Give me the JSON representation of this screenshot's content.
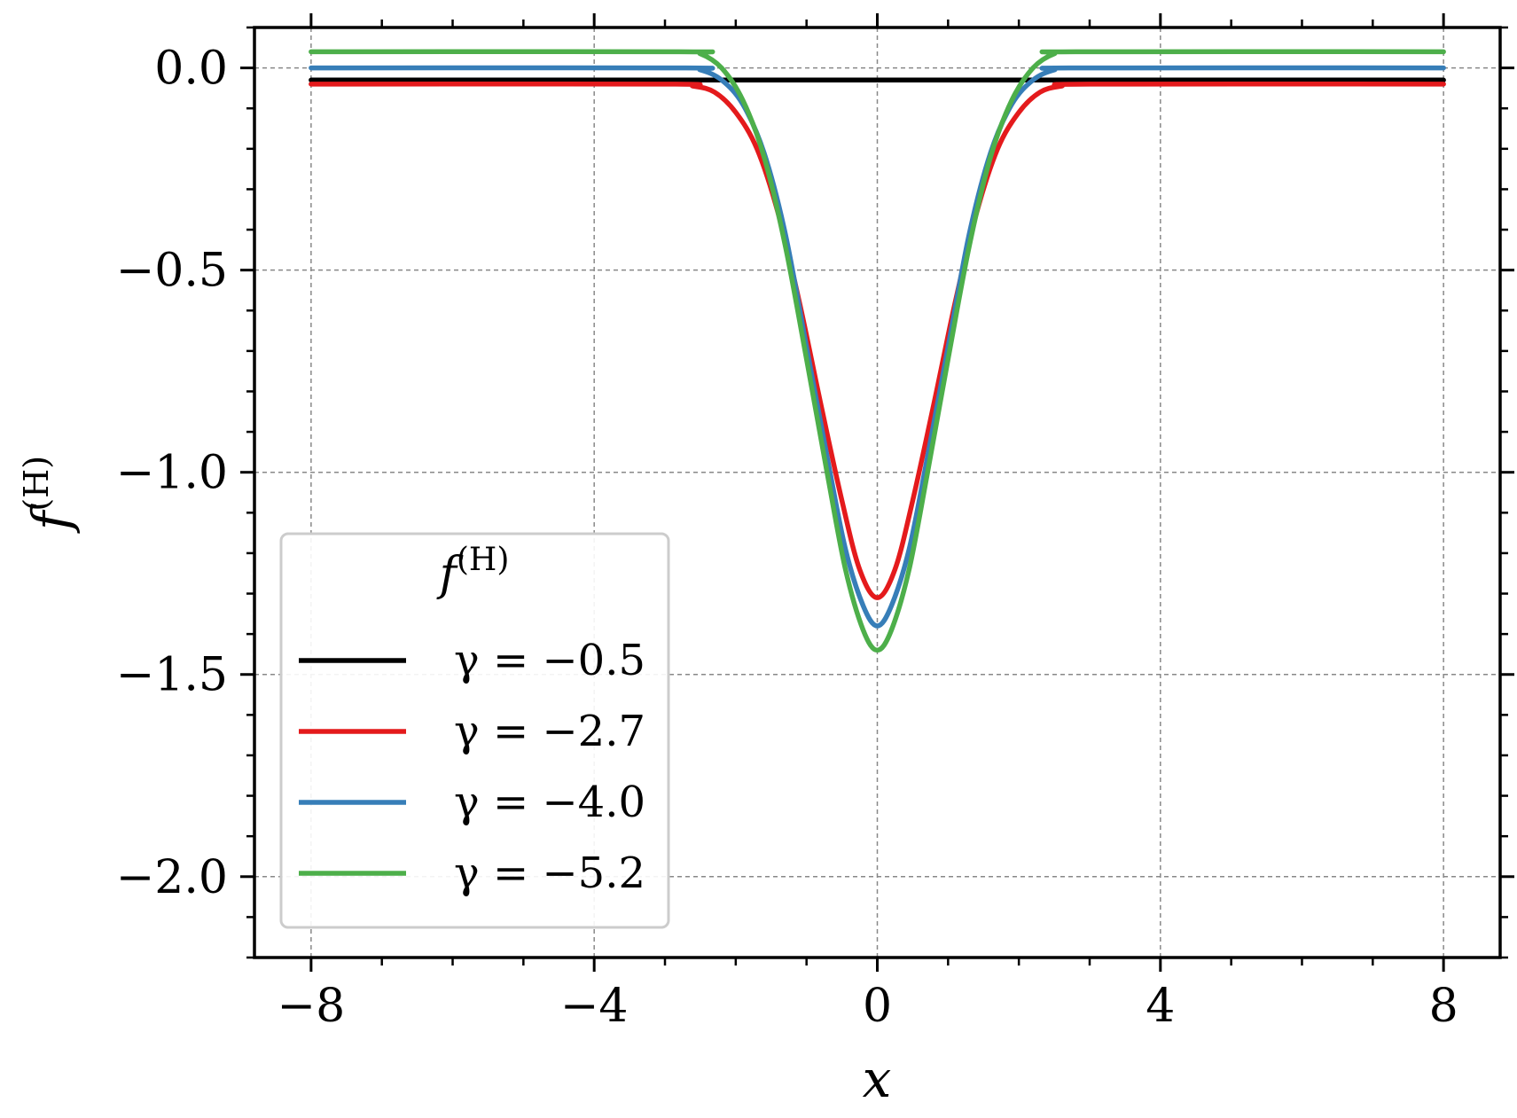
{
  "chart_data": {
    "type": "line",
    "xlabel": "x",
    "ylabel_base": "f",
    "ylabel_sup": "(H)",
    "xlim": [
      -8.8,
      8.8
    ],
    "ylim": [
      -2.2,
      0.1
    ],
    "xticks": [
      -8,
      -4,
      0,
      4,
      8
    ],
    "xtick_labels": [
      "−8",
      "−4",
      "0",
      "4",
      "8"
    ],
    "xminor_step": 1,
    "yticks": [
      0.0,
      -0.5,
      -1.0,
      -1.5,
      -2.0
    ],
    "ytick_labels": [
      "0.0",
      "−0.5",
      "−1.0",
      "−1.5",
      "−2.0"
    ],
    "yminor_step": 0.1,
    "grid": true,
    "legend": {
      "placement": "lower-left",
      "title_base": "f",
      "title_sup": "(H)"
    },
    "series": [
      {
        "name": "γ = −0.5",
        "color": "#000000",
        "x": [
          -8,
          -3,
          -2.5,
          -2,
          -1.5,
          -1,
          -0.5,
          0,
          0.5,
          1,
          1.5,
          2,
          2.5,
          3,
          8
        ],
        "values": [
          -0.03,
          -0.03,
          -0.03,
          -0.03,
          -0.03,
          -0.03,
          -0.03,
          -0.03,
          -0.03,
          -0.03,
          -0.03,
          -0.03,
          -0.03,
          -0.03,
          -0.03
        ]
      },
      {
        "name": "γ = −2.7",
        "color": "#e41a1c",
        "x": [
          -8,
          -3,
          -2.6,
          -2.3,
          -2,
          -1.7,
          -1.4,
          -1.1,
          -0.8,
          -0.5,
          -0.25,
          0,
          0.25,
          0.5,
          0.8,
          1.1,
          1.4,
          1.7,
          2,
          2.3,
          2.6,
          3,
          8
        ],
        "values": [
          -0.04,
          -0.04,
          -0.045,
          -0.06,
          -0.11,
          -0.2,
          -0.36,
          -0.58,
          -0.83,
          -1.07,
          -1.24,
          -1.31,
          -1.24,
          -1.07,
          -0.83,
          -0.58,
          -0.36,
          -0.2,
          -0.11,
          -0.06,
          -0.045,
          -0.04,
          -0.04
        ]
      },
      {
        "name": "γ = −4.0",
        "color": "#377eb8",
        "x": [
          -8,
          -2.8,
          -2.5,
          -2.2,
          -1.9,
          -1.6,
          -1.3,
          -1.0,
          -0.7,
          -0.45,
          -0.2,
          0,
          0.2,
          0.45,
          0.7,
          1.0,
          1.3,
          1.6,
          1.9,
          2.2,
          2.5,
          2.8,
          8
        ],
        "values": [
          0.0,
          0.0,
          -0.005,
          -0.03,
          -0.09,
          -0.21,
          -0.41,
          -0.69,
          -0.97,
          -1.19,
          -1.33,
          -1.38,
          -1.33,
          -1.19,
          -0.97,
          -0.69,
          -0.41,
          -0.21,
          -0.09,
          -0.03,
          -0.005,
          0.0,
          0.0
        ]
      },
      {
        "name": "γ = −5.2",
        "color": "#4daf4a",
        "x": [
          -8,
          -2.8,
          -2.5,
          -2.2,
          -1.9,
          -1.6,
          -1.3,
          -1.0,
          -0.7,
          -0.45,
          -0.2,
          0,
          0.2,
          0.45,
          0.7,
          1.0,
          1.3,
          1.6,
          1.9,
          2.2,
          2.5,
          2.8,
          8
        ],
        "values": [
          0.04,
          0.04,
          0.035,
          0.0,
          -0.08,
          -0.22,
          -0.44,
          -0.72,
          -1.01,
          -1.24,
          -1.39,
          -1.44,
          -1.39,
          -1.24,
          -1.01,
          -0.72,
          -0.44,
          -0.22,
          -0.08,
          0.0,
          0.035,
          0.04,
          0.04
        ]
      }
    ]
  }
}
